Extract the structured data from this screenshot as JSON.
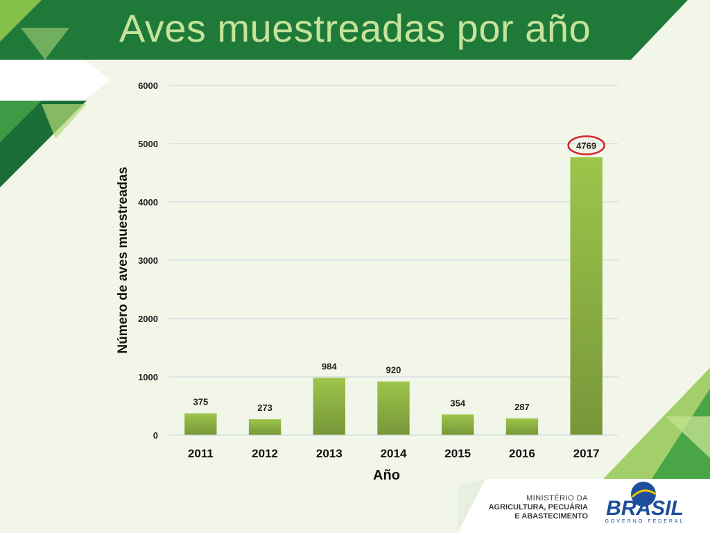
{
  "slide": {
    "title": "Aves muestreadas por año",
    "logo": {
      "ministry_lines": [
        "MINISTÉRIO DA",
        "AGRICULTURA, PECUÁRIA",
        "E ABASTECIMENTO"
      ],
      "brand": "BRASIL",
      "brand_sub": "GOVERNO FEDERAL"
    },
    "colors": {
      "title_band": "#1f7a3a",
      "title_text": "#c5e39a",
      "background": "#f2f6e8",
      "bar_top": "#9dc54a",
      "bar_bottom": "#76973a",
      "highlight_circle": "#d9232e"
    }
  },
  "chart_data": {
    "type": "bar",
    "title": "",
    "xlabel": "Año",
    "ylabel": "Número de aves muestreadas",
    "categories": [
      "2011",
      "2012",
      "2013",
      "2014",
      "2015",
      "2016",
      "2017"
    ],
    "values": [
      375,
      273,
      984,
      920,
      354,
      287,
      4769
    ],
    "data_labels": [
      "375",
      "273",
      "984",
      "920",
      "354",
      "287",
      "4769"
    ],
    "ylim": [
      0,
      6000
    ],
    "yticks": [
      0,
      1000,
      2000,
      3000,
      4000,
      5000,
      6000
    ],
    "ytick_labels": [
      "0",
      "1000",
      "2000",
      "3000",
      "4000",
      "5000",
      "6000"
    ],
    "grid": true,
    "legend": "none",
    "highlighted_category": "2017"
  }
}
